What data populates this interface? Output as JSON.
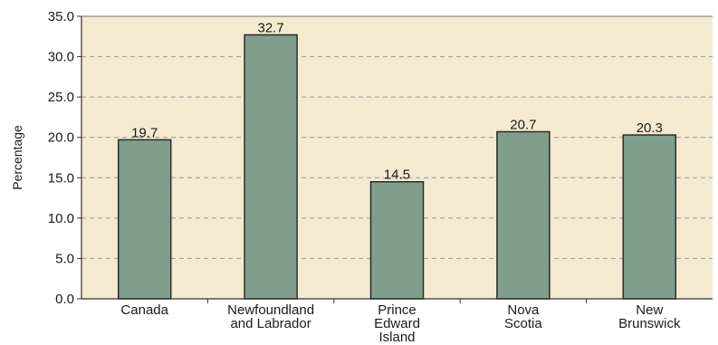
{
  "chart_data": {
    "type": "bar",
    "categories": [
      [
        "Canada"
      ],
      [
        "Newfoundland",
        "and Labrador"
      ],
      [
        "Prince",
        "Edward",
        "Island"
      ],
      [
        "Nova",
        "Scotia"
      ],
      [
        "New",
        "Brunswick"
      ]
    ],
    "values": [
      19.7,
      32.7,
      14.5,
      20.7,
      20.3
    ],
    "value_labels": [
      "19.7",
      "32.7",
      "14.5",
      "20.7",
      "20.3"
    ],
    "ylabel": "Percentage",
    "ylim": [
      0,
      35
    ],
    "yticks": [
      "0.0",
      "5.0",
      "10.0",
      "15.0",
      "20.0",
      "25.0",
      "30.0",
      "35.0"
    ],
    "grid": true,
    "colors": {
      "plot_background": "#f3ead0",
      "bar_fill": "#7f9f8c",
      "bar_stroke": "#2b2b2b",
      "grid": "#9a9a9a",
      "axis": "#333333"
    }
  }
}
